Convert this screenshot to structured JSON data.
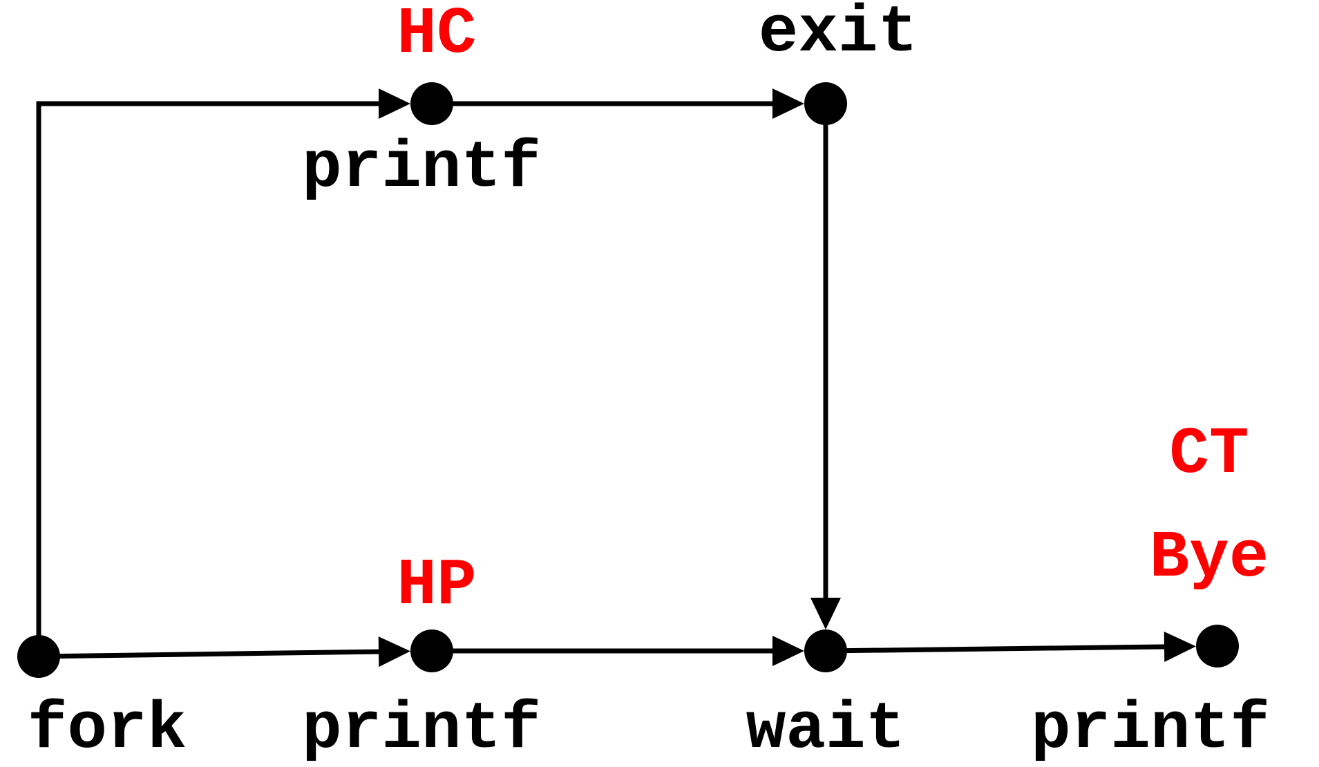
{
  "colors": {
    "stroke": "#000000",
    "output": "#ff0000"
  },
  "nodes": [
    {
      "id": "fork",
      "call": "fork",
      "output": ""
    },
    {
      "id": "p-child",
      "call": "printf",
      "output": "HC"
    },
    {
      "id": "exit",
      "call": "exit",
      "output": ""
    },
    {
      "id": "p-parent",
      "call": "printf",
      "output": "HP"
    },
    {
      "id": "wait",
      "call": "wait",
      "output": ""
    },
    {
      "id": "p-final",
      "call": "printf",
      "output": [
        "CT",
        "Bye"
      ]
    }
  ],
  "edges": [
    {
      "from": "fork",
      "to": "p-child"
    },
    {
      "from": "p-child",
      "to": "exit"
    },
    {
      "from": "exit",
      "to": "wait"
    },
    {
      "from": "fork",
      "to": "p-parent"
    },
    {
      "from": "p-parent",
      "to": "wait"
    },
    {
      "from": "wait",
      "to": "p-final"
    }
  ]
}
